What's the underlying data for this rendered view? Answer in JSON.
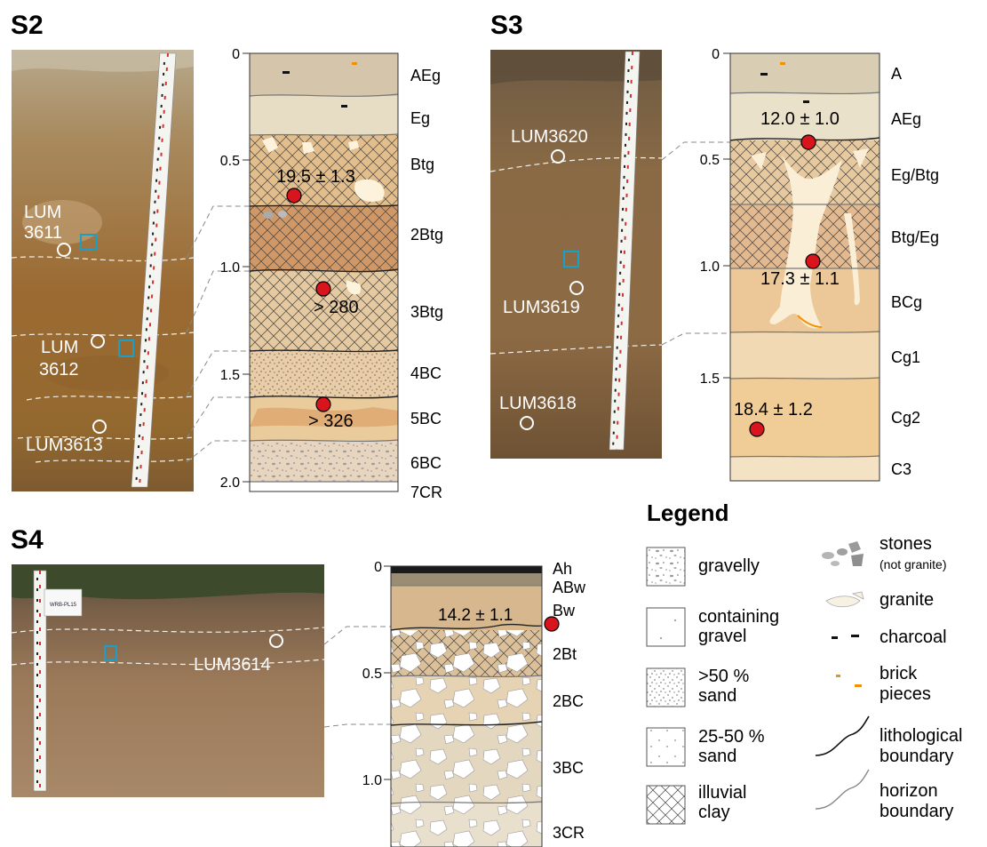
{
  "panels": {
    "s2": {
      "title": "S2",
      "photo_samples": [
        "LUM",
        "3611",
        "LUM",
        "3612",
        "LUM3613"
      ],
      "depth_ticks": [
        "0",
        "0.5",
        "1.0",
        "1.5",
        "2.0"
      ],
      "horizons": [
        "AEg",
        "Eg",
        "Btg",
        "2Btg",
        "3Btg",
        "4BC",
        "5BC",
        "6BC",
        "7CR"
      ],
      "ages": [
        "19.5 ± 1.3",
        "> 280",
        "> 326"
      ]
    },
    "s3": {
      "title": "S3",
      "photo_samples": [
        "LUM3620",
        "LUM3619",
        "LUM3618"
      ],
      "depth_ticks": [
        "0",
        "0.5",
        "1.0",
        "1.5"
      ],
      "horizons": [
        "A",
        "AEg",
        "Eg/Btg",
        "Btg/Eg",
        "BCg",
        "Cg1",
        "Cg2",
        "C3"
      ],
      "ages": [
        "12.0 ± 1.0",
        "17.3 ± 1.1",
        "18.4 ± 1.2"
      ]
    },
    "s4": {
      "title": "S4",
      "photo_samples": [
        "LUM3614"
      ],
      "photo_sign": "WRB-PL15",
      "depth_ticks": [
        "0",
        "0.5",
        "1.0"
      ],
      "horizons": [
        "Ah",
        "ABw",
        "Bw",
        "2Bt",
        "2BC",
        "3BC",
        "3CR"
      ],
      "ages": [
        "14.2 ± 1.1"
      ]
    }
  },
  "legend": {
    "title": "Legend",
    "items": {
      "gravelly": [
        "gravelly"
      ],
      "containing_gravel": [
        "containing",
        "gravel"
      ],
      "sand_gt50": [
        ">50 %",
        "sand"
      ],
      "sand_25_50": [
        "25-50 %",
        "sand"
      ],
      "illuvial_clay": [
        "illuvial",
        "clay"
      ],
      "stones": [
        "stones",
        "(not granite)"
      ],
      "granite": [
        "granite"
      ],
      "charcoal": [
        "charcoal"
      ],
      "brick": [
        "brick",
        "pieces"
      ],
      "lithological": [
        "lithological",
        "boundary"
      ],
      "horizon": [
        "horizon",
        "boundary"
      ]
    }
  },
  "colors": {
    "sample_marker": "#d8141c",
    "photo_box": "#1aa0c8",
    "brick": "#f39200",
    "soil_light": "#e9dcc3",
    "soil_tan": "#d8b584",
    "soil_brown": "#c99060",
    "soil_grey": "#d9d2c4"
  }
}
